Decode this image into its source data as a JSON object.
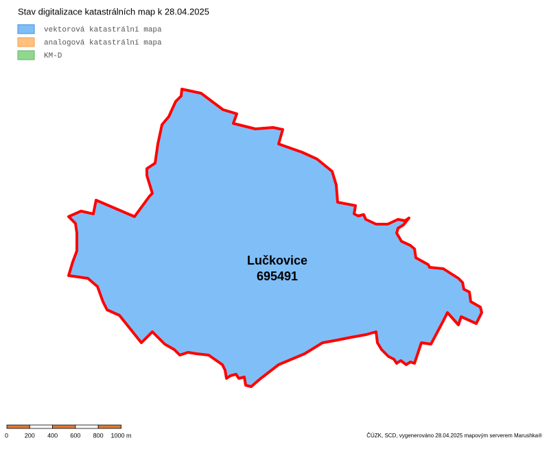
{
  "title": "Stav digitalizace katastrálních map k 28.04.2025",
  "legend": [
    {
      "label": "vektorová katastrální mapa",
      "color": "#80bef8",
      "border": "#3a8ee0"
    },
    {
      "label": "analogová katastrální mapa",
      "color": "#ffc080",
      "border": "#f0a050"
    },
    {
      "label": "KM-D",
      "color": "#90d890",
      "border": "#60b060"
    }
  ],
  "region": {
    "name": "Lučkovice",
    "code": "695491"
  },
  "scale_labels": [
    "0",
    "200",
    "400",
    "600",
    "800",
    "1000 m"
  ],
  "footer": "ČÚZK, SCD, vygenerováno 28.04.2025 mapovým serverem Marushka®"
}
